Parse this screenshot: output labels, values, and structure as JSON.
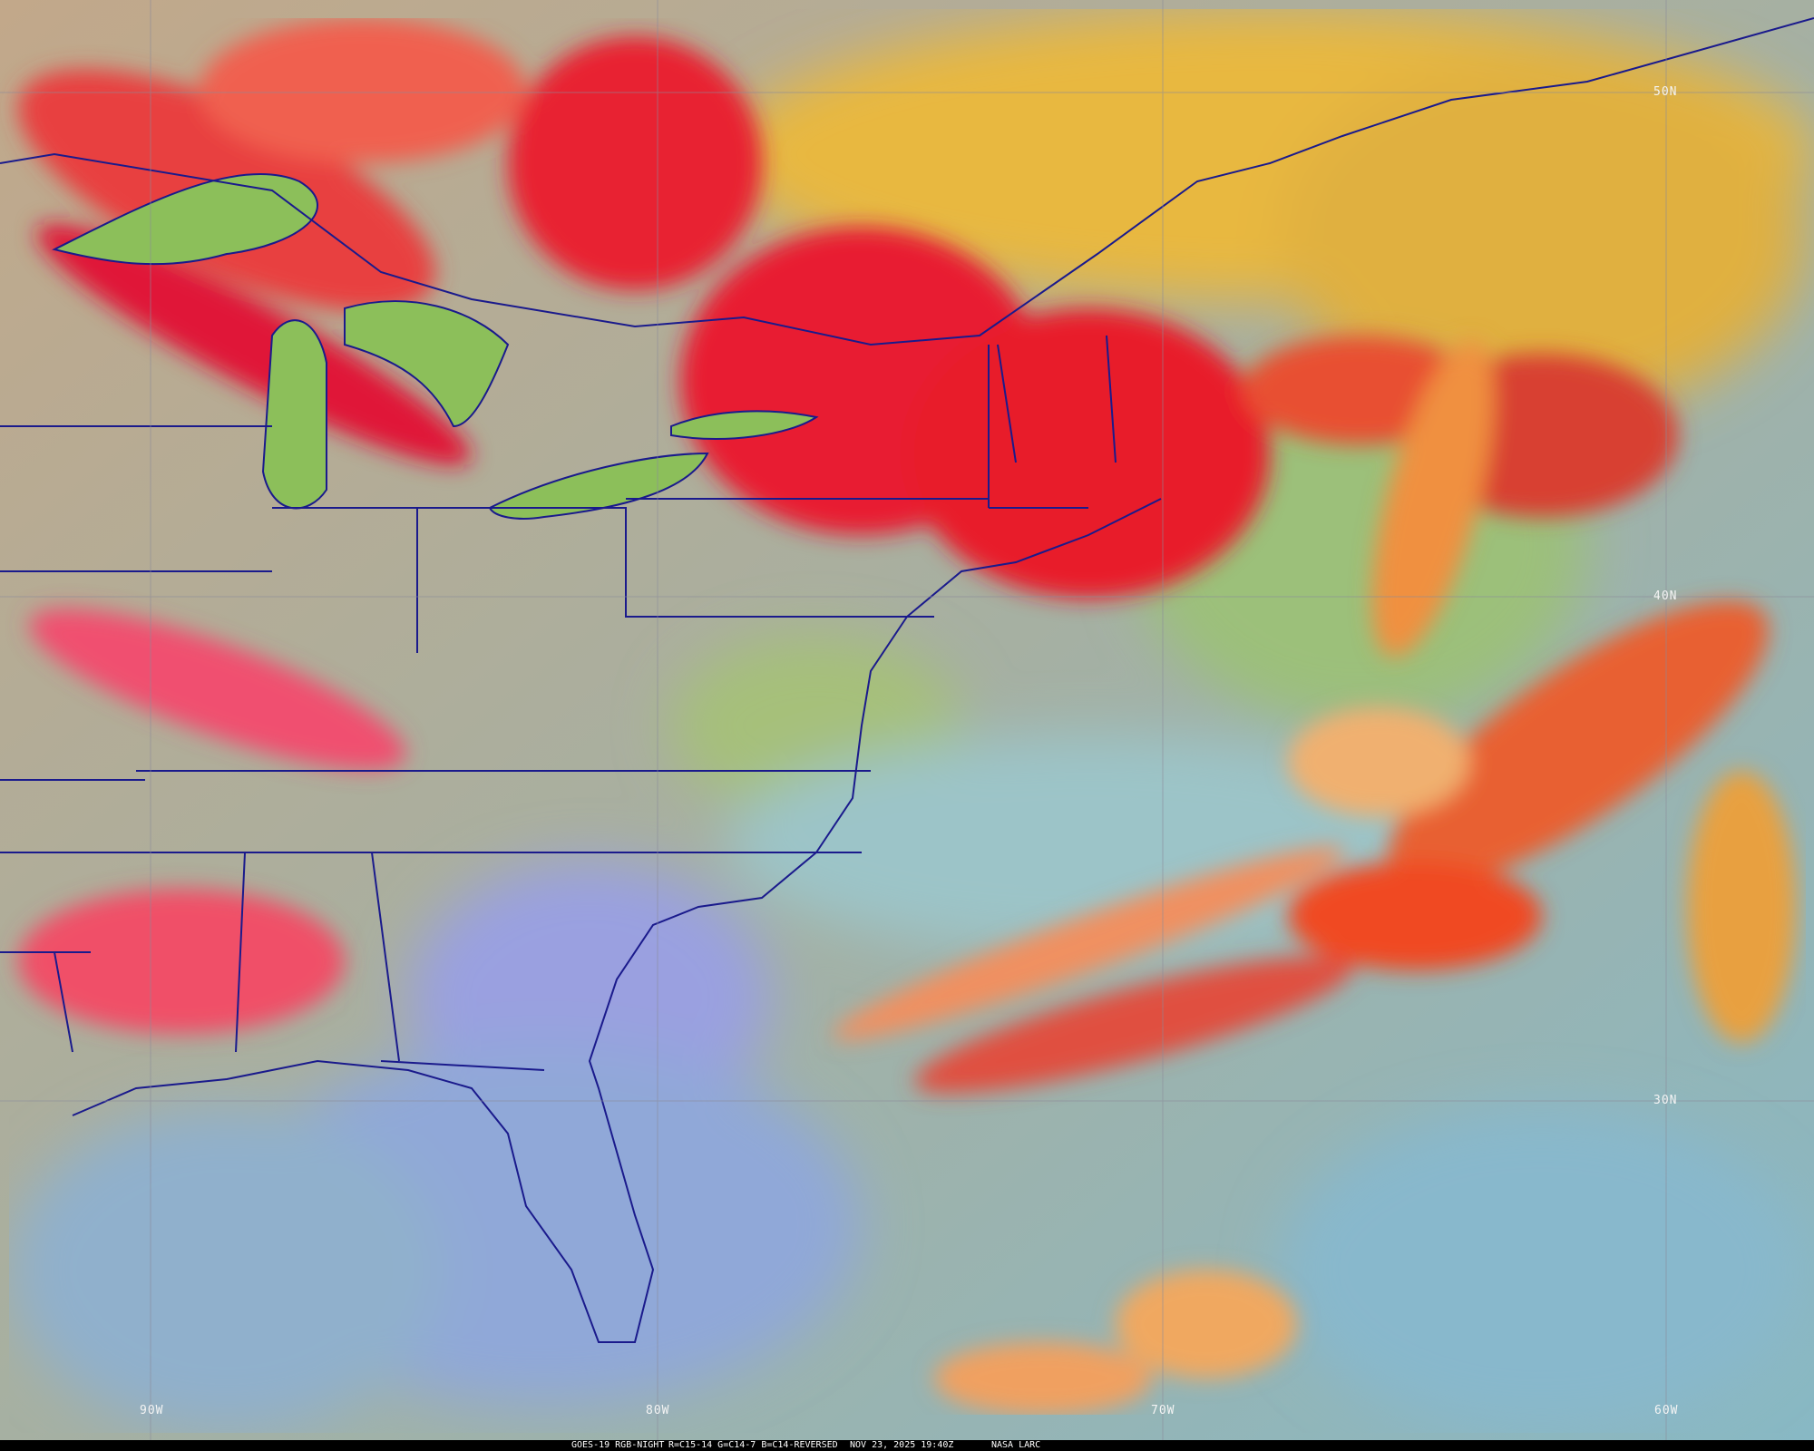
{
  "map": {
    "product": "GOES-19 RGB-NIGHT",
    "recipe": "R=C15-14 G=C14-7 B=C14-REVERSED",
    "timestamp": "NOV 23, 2025 19:40Z",
    "credit": "NASA LARC",
    "lat_labels": [
      "50N",
      "40N",
      "30N"
    ],
    "lon_labels": [
      "90W",
      "80W",
      "70W",
      "60W"
    ],
    "colors": {
      "boundary": "#1a1a8c",
      "graticule": "#8a8a9a",
      "high_cloud": "#e8203a",
      "low_cloud": "#f0a040",
      "land": "#b4a592",
      "lakes": "#8cbf5a",
      "ocean": "#8cb8c8"
    }
  }
}
